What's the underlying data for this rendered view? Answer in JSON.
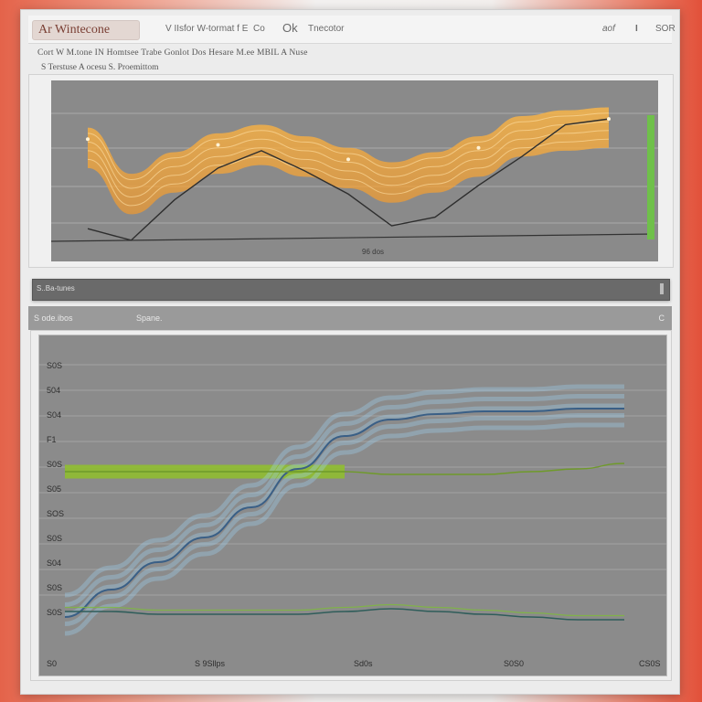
{
  "window": {
    "title": "Ar Wintecone",
    "toolbar_items": [
      "V IIsfor W-tormat f E",
      "Co",
      "Ok",
      "Tnecotor"
    ],
    "right_items": [
      "aof",
      "I",
      "SOR"
    ]
  },
  "subtoolbar": {
    "row1": "Cort W M.tone IN Homtsee Trabe Gonlot Dos Hesare M.ee MBIL A Nuse",
    "row2": "S Terstuse   A ocesu   S. Proemittom"
  },
  "divider": {
    "label": "S..Ba-tunes"
  },
  "panel2": {
    "header_left": "S ode.ibos",
    "header_mid": "Spane.",
    "header_right": "C"
  },
  "colors": {
    "orange": "#f5a93a",
    "dark_line": "#2e2e2e",
    "blue": "#7cb9e8",
    "green": "#8fbf2a",
    "green_bar": "#76c043"
  },
  "chart_data": [
    {
      "type": "area",
      "x": [
        0,
        1,
        2,
        3,
        4,
        5,
        6,
        7,
        8,
        9,
        10,
        11,
        12
      ],
      "series": [
        {
          "values": [
            72,
            40,
            55,
            68,
            74,
            66,
            58,
            48,
            55,
            66,
            80,
            84,
            86
          ]
        },
        {
          "values": [
            10,
            2,
            30,
            52,
            64,
            50,
            34,
            12,
            18,
            40,
            60,
            82,
            86
          ]
        }
      ],
      "ylim": [
        0,
        100
      ],
      "annotations": [
        "96 dos"
      ]
    },
    {
      "type": "line",
      "x": [
        0,
        1,
        2,
        3,
        4,
        5,
        6,
        7,
        8,
        9,
        10,
        11,
        12
      ],
      "y_tick_labels": [
        "S0S",
        "504",
        "S04",
        "F1",
        "S0S",
        "S05",
        "SOS",
        "S0S",
        "S04",
        "S0S",
        "S0S"
      ],
      "x_tick_labels": [
        "S0",
        "S 9Sllps",
        "Sd0s",
        "S0S0",
        "CS0S"
      ],
      "series": [
        {
          "values": [
            4,
            14,
            24,
            33,
            44,
            58,
            70,
            76,
            78,
            79,
            79,
            80,
            80
          ]
        },
        {
          "values": [
            57,
            57,
            57,
            57,
            57,
            57,
            57,
            56,
            56,
            56,
            57,
            58,
            60
          ]
        },
        {
          "values": [
            6,
            6,
            5,
            5,
            5,
            5,
            6,
            7,
            6,
            5,
            4,
            3,
            3
          ]
        }
      ],
      "ylim": [
        0,
        100
      ]
    }
  ]
}
